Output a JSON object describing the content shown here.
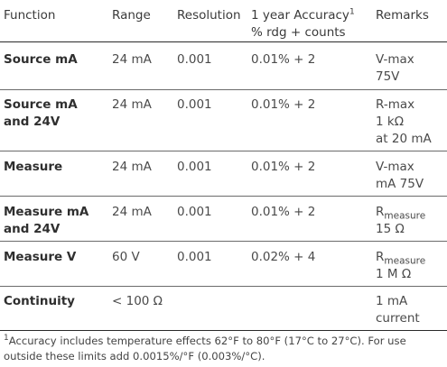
{
  "header": {
    "function": "Function",
    "range": "Range",
    "resolution": "Resolution",
    "accuracy": "1 year Accuracy",
    "accuracy_sup": "1",
    "accuracy_line2": "% rdg + counts",
    "remarks": "Remarks"
  },
  "rows": [
    {
      "function": [
        "Source mA"
      ],
      "range": "24 mA",
      "resolution": "0.001",
      "accuracy": "0.01% + 2",
      "remarks": [
        "V-max",
        "75V"
      ]
    },
    {
      "function": [
        "Source mA",
        "and 24V"
      ],
      "range": "24 mA",
      "resolution": "0.001",
      "accuracy": "0.01% + 2",
      "remarks": [
        "R-max",
        "1 kΩ",
        "at 20 mA"
      ]
    },
    {
      "function": [
        "Measure"
      ],
      "range": "24 mA",
      "resolution": "0.001",
      "accuracy": "0.01% + 2",
      "remarks": [
        "V-max",
        "mA 75V"
      ]
    },
    {
      "function": [
        "Measure mA",
        "and 24V"
      ],
      "range": "24 mA",
      "resolution": "0.001",
      "accuracy": "0.01% + 2",
      "remarks_r": "R",
      "remarks_sub": "measure",
      "remarks_line2": "15 Ω"
    },
    {
      "function": [
        "Measure V"
      ],
      "range": "60 V",
      "resolution": "0.001",
      "accuracy": "0.02% + 4",
      "remarks_r": "R",
      "remarks_sub": "measure",
      "remarks_line2": "1 M Ω"
    },
    {
      "function": [
        "Continuity"
      ],
      "range": "< 100 Ω",
      "resolution": "",
      "accuracy": "",
      "remarks": [
        "1 mA",
        "current"
      ]
    }
  ],
  "footnote": {
    "marker": "1",
    "line1": "Accuracy includes temperature effects 62°F to 80°F (17°C to 27°C). For use",
    "line2": "outside these limits add 0.0015%/°F (0.003%/°C)."
  }
}
